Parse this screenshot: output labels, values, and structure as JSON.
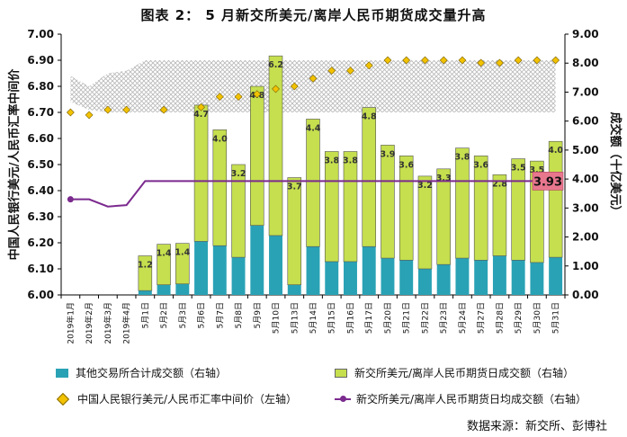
{
  "title": "图表 2： 5 月新交所美元/离岸人民币期货成交量升高",
  "source": "数据来源：新交所、彭博社",
  "colors": {
    "teal": "#2AA2B5",
    "green": "#C5DF4E",
    "diamond": "#F2C200",
    "avg_line": "#7B2A8E",
    "hatch_band": "#C8C8C8",
    "callout_fill": "#E8778E"
  },
  "chart_data": {
    "type": "bar",
    "title": "图表 2： 5 月新交所美元/离岸人民币期货成交量升高",
    "ylabel_left": "中国人民银行美元/人民币汇率中间价",
    "ylabel_right": "成交额（十亿美元）",
    "ylim_left": [
      6.0,
      7.0
    ],
    "ylim_right": [
      0.0,
      9.0
    ],
    "yticks_left": [
      "6.00",
      "6.10",
      "6.20",
      "6.30",
      "6.40",
      "6.50",
      "6.60",
      "6.70",
      "6.80",
      "6.90",
      "7.00"
    ],
    "yticks_right": [
      "0.00",
      "1.00",
      "2.00",
      "3.00",
      "4.00",
      "5.00",
      "6.00",
      "7.00",
      "8.00",
      "9.00"
    ],
    "categories": [
      "2019年1月",
      "2019年2月",
      "2019年3月",
      "2019年4月",
      "5月1日",
      "5月2日",
      "5月3日",
      "5月6日",
      "5月7日",
      "5月8日",
      "5月9日",
      "5月10日",
      "5月13日",
      "5月14日",
      "5月15日",
      "5月16日",
      "5月17日",
      "5月20日",
      "5月21日",
      "5月22日",
      "5月23日",
      "5月24日",
      "5月27日",
      "5月28日",
      "5月29日",
      "5月30日",
      "5月31日"
    ],
    "series": [
      {
        "name": "其他交易所合计成交额（右轴）",
        "axis": "right",
        "kind": "stacked-bar",
        "values": [
          null,
          null,
          null,
          null,
          0.15,
          0.35,
          0.38,
          1.85,
          1.7,
          1.3,
          2.4,
          2.05,
          0.35,
          1.67,
          1.15,
          1.15,
          1.67,
          1.27,
          1.2,
          0.9,
          1.05,
          1.27,
          1.2,
          1.35,
          1.2,
          1.12,
          1.3
        ]
      },
      {
        "name": "新交所美元/离岸人民币期货日成交额（右轴）",
        "axis": "right",
        "kind": "stacked-bar",
        "values": [
          null,
          null,
          null,
          null,
          1.2,
          1.4,
          1.4,
          4.7,
          4.0,
          3.2,
          4.8,
          6.2,
          3.7,
          4.4,
          3.8,
          3.8,
          4.8,
          3.9,
          3.6,
          3.2,
          3.3,
          3.8,
          3.6,
          2.8,
          3.5,
          3.5,
          4.0
        ]
      },
      {
        "name": "中国人民银行美元/人民币汇率中间价（左轴）",
        "axis": "left",
        "kind": "scatter",
        "values": [
          6.7,
          6.69,
          6.71,
          6.71,
          null,
          6.71,
          null,
          6.72,
          6.76,
          6.76,
          6.77,
          6.79,
          6.8,
          6.83,
          6.86,
          6.86,
          6.88,
          6.9,
          6.9,
          6.9,
          6.9,
          6.9,
          6.89,
          6.89,
          6.9,
          6.9,
          6.9
        ]
      },
      {
        "name": "新交所美元/离岸人民币期货日均成交额（右轴）",
        "axis": "right",
        "kind": "line",
        "values": [
          3.3,
          3.3,
          3.05,
          3.1,
          3.93,
          3.93,
          3.93,
          3.93,
          3.93,
          3.93,
          3.93,
          3.93,
          3.93,
          3.93,
          3.93,
          3.93,
          3.93,
          3.93,
          3.93,
          3.93,
          3.93,
          3.93,
          3.93,
          3.93,
          3.93,
          3.93,
          3.93
        ]
      }
    ],
    "green_labels": [
      "1.2",
      "1.4",
      "1.4",
      "4.7",
      "4.0",
      "3.2",
      "4.8",
      "6.2",
      "3.7",
      "4.4",
      "3.8",
      "3.8",
      "4.8",
      "3.9",
      "3.6",
      "3.2",
      "3.3",
      "3.8",
      "3.6",
      "2.8",
      "3.5",
      "3.5",
      "4.0"
    ],
    "callout": "3.93",
    "band_left": {
      "lower": [
        6.74,
        6.71,
        6.7,
        6.7,
        6.7,
        6.7,
        6.7,
        6.7,
        6.7,
        6.7,
        6.7,
        6.7,
        6.7,
        6.7,
        6.7,
        6.7,
        6.7,
        6.7,
        6.7,
        6.7,
        6.7,
        6.7,
        6.7,
        6.7,
        6.7,
        6.7,
        6.7
      ],
      "upper": [
        6.84,
        6.8,
        6.85,
        6.86,
        6.9,
        6.9,
        6.9,
        6.9,
        6.9,
        6.9,
        6.9,
        6.9,
        6.9,
        6.9,
        6.9,
        6.9,
        6.9,
        6.9,
        6.9,
        6.9,
        6.9,
        6.9,
        6.9,
        6.9,
        6.9,
        6.9,
        6.9
      ]
    },
    "grid": false,
    "legend": "bottom"
  },
  "legend": [
    {
      "label": "其他交易所合计成交额（右轴）"
    },
    {
      "label": "新交所美元/离岸人民币期货日成交额（右轴）"
    },
    {
      "label": "中国人民银行美元/人民币汇率中间价（左轴）"
    },
    {
      "label": "新交所美元/离岸人民币期货日均成交额（右轴）"
    }
  ]
}
